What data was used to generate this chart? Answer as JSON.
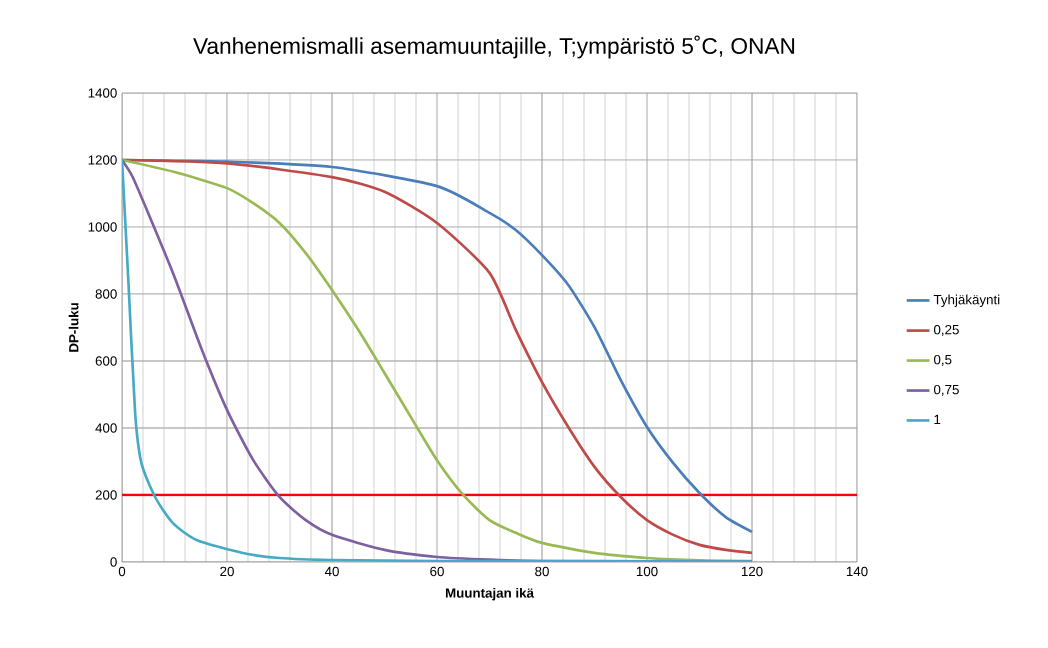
{
  "chart_data": {
    "type": "line",
    "title": "Vanhenemismalli asemamuuntajille, T;ympäristö 5˚C, ONAN",
    "xlabel": "Muuntajan ikä",
    "ylabel": "DP-luku",
    "xlim": [
      0,
      140
    ],
    "ylim": [
      0,
      1400
    ],
    "xticks": [
      0,
      {
        "value": 4,
        "label": null
      },
      {
        "value": 8,
        "label": null
      },
      {
        "value": 12,
        "label": null
      },
      {
        "value": 16,
        "label": null
      },
      20,
      {
        "value": 24,
        "label": null
      },
      {
        "value": 28,
        "label": null
      },
      {
        "value": 32,
        "label": null
      },
      {
        "value": 36,
        "label": null
      },
      40,
      {
        "value": 44,
        "label": null
      },
      {
        "value": 48,
        "label": null
      },
      {
        "value": 52,
        "label": null
      },
      {
        "value": 56,
        "label": null
      },
      60,
      {
        "value": 64,
        "label": null
      },
      {
        "value": 68,
        "label": null
      },
      {
        "value": 72,
        "label": null
      },
      {
        "value": 76,
        "label": null
      },
      80,
      {
        "value": 84,
        "label": null
      },
      {
        "value": 88,
        "label": null
      },
      {
        "value": 92,
        "label": null
      },
      {
        "value": 96,
        "label": null
      },
      100,
      {
        "value": 104,
        "label": null
      },
      {
        "value": 108,
        "label": null
      },
      {
        "value": 112,
        "label": null
      },
      {
        "value": 116,
        "label": null
      },
      120,
      {
        "value": 124,
        "label": null
      },
      {
        "value": 128,
        "label": null
      },
      {
        "value": 132,
        "label": null
      },
      {
        "value": 136,
        "label": null
      },
      140
    ],
    "yticks": [
      0,
      200,
      400,
      600,
      800,
      1000,
      1200,
      1400
    ],
    "grid": true,
    "legend": "right",
    "marker": "none",
    "line_style": "solid",
    "series": [
      {
        "name": "Tyhjäkäynti",
        "color": "#4a7ebb",
        "x": [
          0,
          20,
          40,
          60,
          70,
          75,
          80,
          85,
          90,
          95,
          100,
          105,
          110,
          115,
          120
        ],
        "values": [
          1200,
          1195,
          1179,
          1122,
          1042,
          991,
          916,
          827,
          701,
          543,
          403,
          295,
          206,
          134,
          90
        ]
      },
      {
        "name": "0,25",
        "color": "#be4b48",
        "x": [
          0,
          20,
          40,
          50,
          60,
          70,
          75,
          80,
          85,
          90,
          95,
          100,
          105,
          110,
          115,
          120
        ],
        "values": [
          1200,
          1190,
          1149,
          1105,
          1012,
          863,
          693,
          537,
          403,
          284,
          194,
          125,
          81,
          51,
          36,
          27
        ]
      },
      {
        "name": "0,5",
        "color": "#98b954",
        "x": [
          0,
          10,
          20,
          25,
          30,
          35,
          40,
          45,
          50,
          55,
          60,
          65,
          70,
          75,
          80,
          90,
          100,
          110,
          120
        ],
        "values": [
          1200,
          1164,
          1116,
          1071,
          1012,
          922,
          812,
          693,
          564,
          433,
          304,
          200,
          125,
          87,
          57,
          27,
          12,
          5,
          3
        ]
      },
      {
        "name": "0,75",
        "color": "#7d60a0",
        "x": [
          0,
          2,
          5,
          10,
          15,
          20,
          25,
          30,
          35,
          40,
          50,
          60,
          70,
          80,
          100,
          120
        ],
        "values": [
          1200,
          1150,
          1041,
          851,
          642,
          454,
          304,
          194,
          125,
          81,
          36,
          15,
          7,
          3,
          2,
          1
        ]
      },
      {
        "name": "1",
        "color": "#46aac5",
        "x": [
          0,
          1.2,
          2.5,
          3.7,
          6.3,
          9.7,
          14.3,
          23,
          30,
          40,
          60,
          120
        ],
        "values": [
          1200,
          842,
          445,
          295,
          194,
          116,
          65,
          27,
          12,
          6,
          3,
          1
        ]
      }
    ],
    "ref_lines": [
      {
        "axis": "y",
        "value": 200,
        "color": "#ff0000",
        "line_style": "solid"
      }
    ]
  }
}
